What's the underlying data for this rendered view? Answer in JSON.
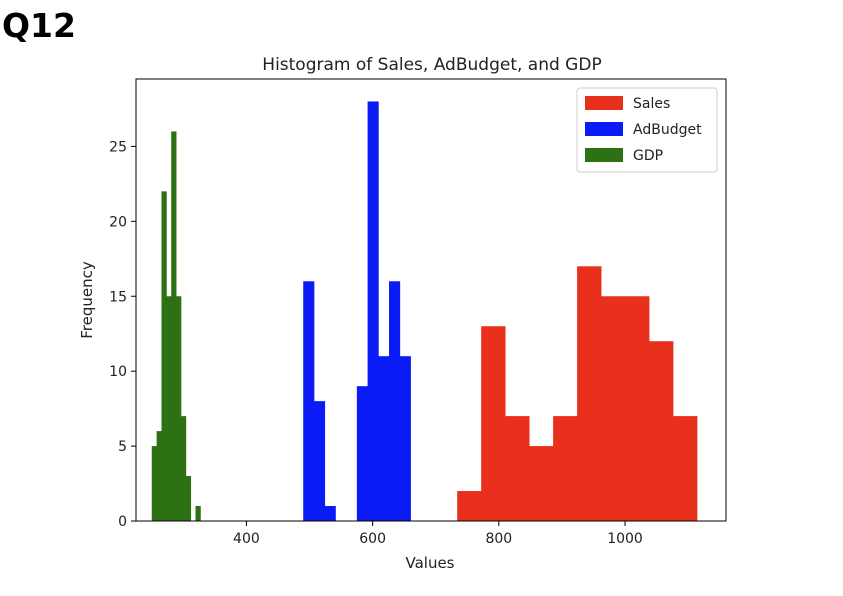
{
  "page": {
    "question_label": "Q12"
  },
  "chart_data": {
    "type": "bar",
    "title": "Histogram of Sales, AdBudget, and GDP",
    "xlabel": "Values",
    "ylabel": "Frequency",
    "xlim": [
      225,
      1160
    ],
    "ylim": [
      0,
      29.5
    ],
    "xticks": [
      400,
      600,
      800,
      1000
    ],
    "yticks": [
      0,
      5,
      10,
      15,
      20,
      25
    ],
    "legend": {
      "placement": "top-right"
    },
    "series": [
      {
        "name": "Sales",
        "color": "#e8301c",
        "bin_edges": [
          734,
          772,
          810,
          848,
          886,
          924,
          962,
          1000,
          1038,
          1076,
          1114
        ],
        "counts": [
          2,
          13,
          7,
          5,
          7,
          17,
          15,
          15,
          12,
          7
        ]
      },
      {
        "name": "AdBudget",
        "color": "#0a1bf5",
        "bin_edges": [
          490,
          507,
          524,
          541,
          558,
          575,
          592,
          609,
          626,
          643,
          660
        ],
        "counts": [
          16,
          8,
          1,
          0,
          0,
          9,
          28,
          11,
          16,
          11
        ]
      },
      {
        "name": "GDP",
        "color": "#2e7014",
        "bin_edges": [
          250,
          257.7,
          265.4,
          273.1,
          280.8,
          288.5,
          296.2,
          303.9,
          311.6,
          319.3,
          327
        ],
        "counts": [
          5,
          6,
          22,
          15,
          26,
          15,
          7,
          3,
          0,
          1
        ]
      }
    ]
  }
}
